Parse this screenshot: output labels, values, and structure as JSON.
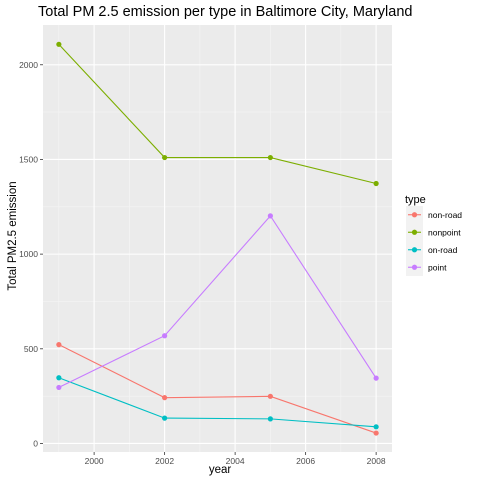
{
  "chart_data": {
    "type": "line",
    "title": "Total PM 2.5 emission per type in Baltimore City, Maryland",
    "xlabel": "year",
    "ylabel": "Total PM2.5 emission",
    "x": [
      1999,
      2002,
      2005,
      2008
    ],
    "xlim": [
      1998.55,
      2008.45
    ],
    "ylim": [
      -45,
      2210
    ],
    "xticks": [
      2000,
      2002,
      2004,
      2006,
      2008
    ],
    "yticks": [
      0,
      500,
      1000,
      1500,
      2000
    ],
    "grid": true,
    "legend": {
      "title": "type",
      "position": "right"
    },
    "series": [
      {
        "name": "non-road",
        "color": "#F8766D",
        "values": [
          522,
          242,
          249,
          55
        ]
      },
      {
        "name": "nonpoint",
        "color": "#7CAE00",
        "values": [
          2108,
          1510,
          1510,
          1373
        ]
      },
      {
        "name": "on-road",
        "color": "#00BFC4",
        "values": [
          347,
          134,
          130,
          88
        ]
      },
      {
        "name": "point",
        "color": "#C77CFF",
        "values": [
          296,
          569,
          1202,
          345
        ]
      }
    ]
  }
}
